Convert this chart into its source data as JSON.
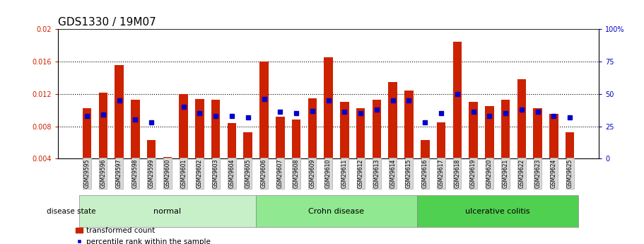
{
  "title": "GDS1330 / 19M07",
  "samples": [
    "GSM29595",
    "GSM29596",
    "GSM29597",
    "GSM29598",
    "GSM29599",
    "GSM29600",
    "GSM29601",
    "GSM29602",
    "GSM29603",
    "GSM29604",
    "GSM29605",
    "GSM29606",
    "GSM29607",
    "GSM29608",
    "GSM29609",
    "GSM29610",
    "GSM29611",
    "GSM29612",
    "GSM29613",
    "GSM29614",
    "GSM29615",
    "GSM29616",
    "GSM29617",
    "GSM29618",
    "GSM29619",
    "GSM29620",
    "GSM29621",
    "GSM29622",
    "GSM29623",
    "GSM29624",
    "GSM29625"
  ],
  "red_values": [
    0.0102,
    0.0122,
    0.0156,
    0.0113,
    0.0063,
    0.0042,
    0.012,
    0.0114,
    0.0113,
    0.0084,
    0.0073,
    0.016,
    0.0092,
    0.0088,
    0.0115,
    0.0165,
    0.011,
    0.0102,
    0.0113,
    0.0135,
    0.0124,
    0.0063,
    0.0085,
    0.0185,
    0.011,
    0.0105,
    0.0113,
    0.0138,
    0.0102,
    0.0095,
    0.0073
  ],
  "blue_percentile": [
    33,
    34,
    45,
    30,
    28,
    null,
    40,
    35,
    33,
    33,
    32,
    46,
    36,
    35,
    37,
    45,
    36,
    35,
    38,
    45,
    45,
    28,
    35,
    50,
    36,
    33,
    35,
    38,
    36,
    33,
    32
  ],
  "groups": [
    {
      "label": "normal",
      "start": 0,
      "end": 10,
      "color": "#c8f0c8"
    },
    {
      "label": "Crohn disease",
      "start": 11,
      "end": 20,
      "color": "#90e890"
    },
    {
      "label": "ulcerative colitis",
      "start": 21,
      "end": 30,
      "color": "#50d050"
    }
  ],
  "ylim_left": [
    0.004,
    0.02
  ],
  "ylim_right": [
    0,
    100
  ],
  "yticks_left": [
    0.004,
    0.008,
    0.012,
    0.016,
    0.02
  ],
  "yticks_left_labels": [
    "0.004",
    "0.008",
    "0.012",
    "0.016",
    "0.02"
  ],
  "yticks_right": [
    0,
    25,
    50,
    75,
    100
  ],
  "yticks_right_labels": [
    "0",
    "25",
    "50",
    "75",
    "100%"
  ],
  "bar_color": "#cc2200",
  "square_color": "#0000cc",
  "title_fontsize": 11,
  "tick_fontsize": 7,
  "background_color": "#ffffff"
}
